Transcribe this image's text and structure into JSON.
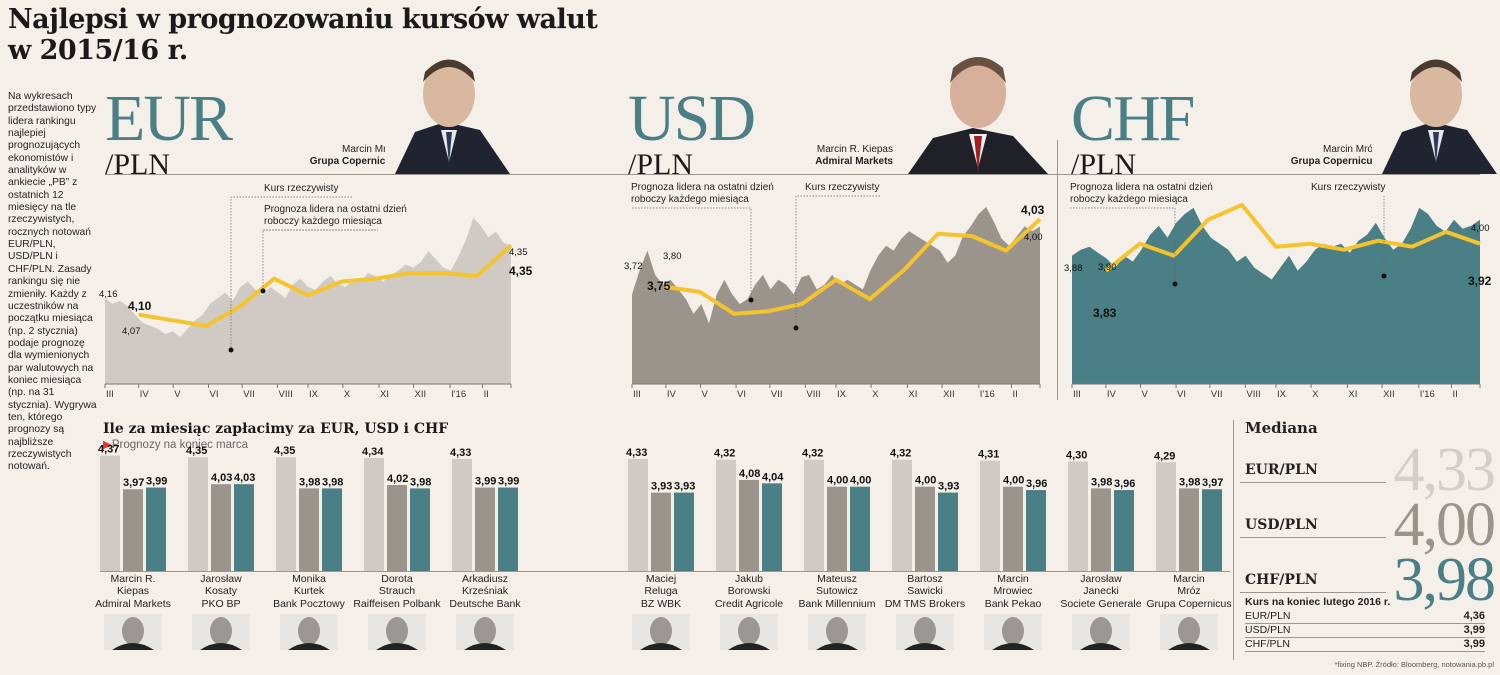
{
  "title_line1": "Najlepsi w prognozowaniu kursów walut",
  "title_line2": "w 2015/16 r.",
  "intro_text": "Na wykresach przedstawiono typy lidera rankingu najlepiej prognozujących ekonomistów i analityków w ankiecie „PB” z ostatnich 12 miesięcy na tle rzeczywistych, rocznych notowań EUR/PLN, USD/PLN i CHF/PLN. Zasady rankingu się nie zmieniły. Każdy z uczestników na początku miesiąca (np. 2 stycznia) podaje prognozę dla wymienionych par walutowych na koniec miesiąca (np. na 31 stycznia). Wygrywa ten, którego prognozy są najbliższe rzeczywistych notowań.",
  "colors": {
    "eur_area": "#cfcbc4",
    "usd_area": "#9a948d",
    "chf_area": "#4a7f86",
    "forecast_line": "#f5c32c",
    "accent_teal": "#4a7f86",
    "red_marker": "#e03a2e"
  },
  "panels": [
    {
      "currency": "EUR",
      "pair_suffix": "/PLN",
      "leader_name": "Marcin Mróz",
      "leader_firm": "Grupa Copernicus",
      "photo_icon": "portrait-photo"
    },
    {
      "currency": "USD",
      "pair_suffix": "/PLN",
      "leader_name": "Marcin R. Kiepas",
      "leader_firm": "Admiral Markets",
      "photo_icon": "portrait-photo"
    },
    {
      "currency": "CHF",
      "pair_suffix": "/PLN",
      "leader_name": "Marcin Mróz",
      "leader_firm": "Grupa Copernicus",
      "photo_icon": "portrait-photo"
    }
  ],
  "legend": {
    "actual": "Kurs rzeczywisty",
    "forecast_l1": "Prognoza lidera na ostatni dzień",
    "forecast_l2": "roboczy każdego miesiąca"
  },
  "chart_data": [
    {
      "type": "area",
      "title": "EUR/PLN",
      "x_ticks": [
        "III",
        "IV",
        "V",
        "VI",
        "VII",
        "VIII",
        "IX",
        "X",
        "XI",
        "XII",
        "I'16",
        "II"
      ],
      "ylim": [
        3.85,
        4.55
      ],
      "series": [
        {
          "name": "Kurs rzeczywisty",
          "kind": "area",
          "values": [
            4.16,
            4.14,
            4.15,
            4.13,
            4.1,
            4.07,
            4.06,
            4.05,
            4.03,
            4.04,
            4.02,
            4.05,
            4.08,
            4.1,
            4.14,
            4.16,
            4.18,
            4.15,
            4.2,
            4.22,
            4.19,
            4.17,
            4.2,
            4.18,
            4.16,
            4.21,
            4.23,
            4.2,
            4.19,
            4.22,
            4.24,
            4.21,
            4.2,
            4.23,
            4.22,
            4.25,
            4.24,
            4.22,
            4.24,
            4.26,
            4.28,
            4.27,
            4.29,
            4.33,
            4.3,
            4.27,
            4.26,
            4.31,
            4.37,
            4.45,
            4.42,
            4.38,
            4.4,
            4.36,
            4.35
          ]
        },
        {
          "name": "Prognoza lidera",
          "kind": "line",
          "values": [
            4.1,
            4.08,
            4.06,
            4.13,
            4.23,
            4.17,
            4.22,
            4.23,
            4.25,
            4.25,
            4.24,
            4.35
          ]
        }
      ],
      "annotations": {
        "start_actual": "4,16",
        "start_forecast": "4,10",
        "start_actual2": "4,07",
        "end_actual": "4,35",
        "end_forecast": "4,35"
      }
    },
    {
      "type": "area",
      "title": "USD/PLN",
      "x_ticks": [
        "III",
        "IV",
        "V",
        "VI",
        "VII",
        "VIII",
        "IX",
        "X",
        "XI",
        "XII",
        "I'16",
        "II"
      ],
      "ylim": [
        3.35,
        4.15
      ],
      "series": [
        {
          "name": "Kurs rzeczywisty",
          "kind": "area",
          "values": [
            3.72,
            3.82,
            3.9,
            3.8,
            3.76,
            3.78,
            3.74,
            3.7,
            3.64,
            3.68,
            3.6,
            3.72,
            3.78,
            3.72,
            3.68,
            3.7,
            3.76,
            3.8,
            3.74,
            3.78,
            3.76,
            3.72,
            3.79,
            3.8,
            3.74,
            3.76,
            3.8,
            3.76,
            3.78,
            3.76,
            3.74,
            3.82,
            3.88,
            3.92,
            3.9,
            3.95,
            3.98,
            3.96,
            3.94,
            3.92,
            3.9,
            3.85,
            3.88,
            3.96,
            4.0,
            4.05,
            4.08,
            4.02,
            3.95,
            3.92,
            3.96,
            4.0,
            3.98,
            4.0
          ]
        },
        {
          "name": "Prognoza lidera",
          "kind": "line",
          "values": [
            3.75,
            3.73,
            3.64,
            3.65,
            3.68,
            3.78,
            3.7,
            3.82,
            3.97,
            3.96,
            3.9,
            4.03
          ]
        }
      ],
      "annotations": {
        "start_actual": "3,72",
        "start_actual2": "3,80",
        "start_forecast": "3,75",
        "end_forecast": "4,03",
        "end_actual": "4,00"
      }
    },
    {
      "type": "area",
      "title": "CHF/PLN",
      "x_ticks": [
        "III",
        "IV",
        "V",
        "VI",
        "VII",
        "VIII",
        "IX",
        "X",
        "XI",
        "XII",
        "I'16",
        "II"
      ],
      "ylim": [
        3.45,
        4.1
      ],
      "series": [
        {
          "name": "Kurs rzeczywisty",
          "kind": "area",
          "values": [
            3.88,
            3.9,
            3.91,
            3.89,
            3.87,
            3.84,
            3.88,
            3.86,
            3.9,
            3.95,
            3.98,
            3.94,
            3.99,
            4.02,
            4.04,
            3.98,
            3.94,
            3.92,
            3.9,
            3.86,
            3.88,
            3.84,
            3.82,
            3.8,
            3.84,
            3.88,
            3.83,
            3.86,
            3.9,
            3.92,
            3.91,
            3.92,
            3.89,
            3.93,
            3.95,
            3.99,
            3.94,
            3.9,
            3.92,
            3.97,
            4.04,
            4.02,
            3.98,
            3.96,
            4.0,
            3.97,
            3.98,
            4.0
          ]
        },
        {
          "name": "Prognoza lidera",
          "kind": "line",
          "values": [
            3.83,
            3.92,
            3.88,
            4.0,
            4.05,
            3.91,
            3.92,
            3.9,
            3.93,
            3.91,
            3.96,
            3.92
          ]
        }
      ],
      "annotations": {
        "start_actual": "3,88",
        "start_actual2": "3,90",
        "start_forecast": "3,83",
        "end_actual": "4,00",
        "end_forecast": "3,92"
      }
    },
    {
      "type": "bar",
      "title": "Ile za miesiąc zapłacimy za EUR, USD i CHF",
      "subtitle": "Prognozy na koniec marca",
      "series_names": [
        "EUR/PLN",
        "USD/PLN",
        "CHF/PLN"
      ],
      "ylim": [
        3.6,
        4.4
      ],
      "groups": [
        {
          "name": "Marcin R.",
          "surname": "Kiepas",
          "firm": "Admiral Markets",
          "values": [
            "4,37",
            "3,97",
            "3,99"
          ]
        },
        {
          "name": "Jarosław",
          "surname": "Kosaty",
          "firm": "PKO BP",
          "values": [
            "4,35",
            "4,03",
            "4,03"
          ]
        },
        {
          "name": "Monika",
          "surname": "Kurtek",
          "firm": "Bank Pocztowy",
          "values": [
            "4,35",
            "3,98",
            "3,98"
          ]
        },
        {
          "name": "Dorota",
          "surname": "Strauch",
          "firm": "Raiffeisen Polbank",
          "values": [
            "4,34",
            "4,02",
            "3,98"
          ]
        },
        {
          "name": "Arkadiusz",
          "surname": "Krześniak",
          "firm": "Deutsche Bank",
          "values": [
            "4,33",
            "3,99",
            "3,99"
          ]
        },
        {
          "name": "Maciej",
          "surname": "Reluga",
          "firm": "BZ WBK",
          "values": [
            "4,33",
            "3,93",
            "3,93"
          ]
        },
        {
          "name": "Jakub",
          "surname": "Borowski",
          "firm": "Credit Agricole",
          "values": [
            "4,32",
            "4,08",
            "4,04"
          ]
        },
        {
          "name": "Mateusz",
          "surname": "Sutowicz",
          "firm": "Bank Millennium",
          "values": [
            "4,32",
            "4,00",
            "4,00"
          ]
        },
        {
          "name": "Bartosz",
          "surname": "Sawicki",
          "firm": "DM TMS Brokers",
          "values": [
            "4,32",
            "4,00",
            "3,93"
          ]
        },
        {
          "name": "Marcin",
          "surname": "Mrowiec",
          "firm": "Bank Pekao",
          "values": [
            "4,31",
            "4,00",
            "3,96"
          ]
        },
        {
          "name": "Jarosław",
          "surname": "Janecki",
          "firm": "Societe Generale",
          "values": [
            "4,30",
            "3,98",
            "3,96"
          ]
        },
        {
          "name": "Marcin",
          "surname": "Mróz",
          "firm": "Grupa Copernicus",
          "values": [
            "4,29",
            "3,98",
            "3,97"
          ]
        }
      ]
    }
  ],
  "mediana": {
    "title": "Mediana",
    "rows": [
      {
        "label": "EUR/PLN",
        "value": "4,33",
        "color": "#d3cfc8"
      },
      {
        "label": "USD/PLN",
        "value": "4,00",
        "color": "#9a948d"
      },
      {
        "label": "CHF/PLN",
        "value": "3,98",
        "color": "#4a7f86"
      }
    ]
  },
  "kurs_lutego": {
    "title": "Kurs na koniec lutego 2016 r.",
    "rows": [
      {
        "label": "EUR/PLN",
        "value": "4,36"
      },
      {
        "label": "USD/PLN",
        "value": "3,99"
      },
      {
        "label": "CHF/PLN",
        "value": "3,99"
      }
    ]
  },
  "footnote": "*fixing NBP. Źródło: Bloomberg, notowania.pb.pl"
}
